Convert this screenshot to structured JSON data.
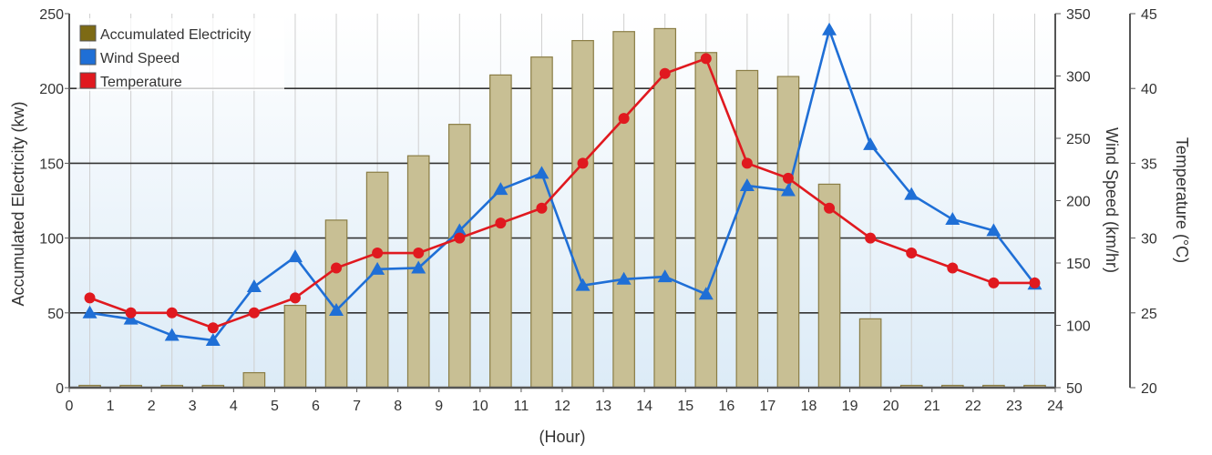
{
  "chart_data": {
    "type": "bar+line",
    "xlabel": "(Hour)",
    "x_ticks": [
      "0",
      "1",
      "2",
      "3",
      "4",
      "5",
      "6",
      "7",
      "8",
      "9",
      "10",
      "11",
      "12",
      "13",
      "14",
      "15",
      "16",
      "17",
      "18",
      "19",
      "20",
      "21",
      "22",
      "23",
      "24"
    ],
    "x_range": [
      0,
      24
    ],
    "grid": true,
    "legend_position": "top-left",
    "axes": {
      "electricity": {
        "label": "Accumulated Electricity (kw)",
        "range": [
          0,
          250
        ],
        "ticks": [
          "0",
          "50",
          "100",
          "150",
          "200",
          "250"
        ],
        "side": "left"
      },
      "wind": {
        "label": "Wind Speed (km/hr)",
        "range": [
          50,
          350
        ],
        "ticks": [
          "50",
          "100",
          "150",
          "200",
          "250",
          "300",
          "350"
        ],
        "side": "right"
      },
      "temperature": {
        "label": "Temperature (°C)",
        "range": [
          20,
          45
        ],
        "ticks": [
          "20",
          "25",
          "30",
          "35",
          "40",
          "45"
        ],
        "side": "right"
      }
    },
    "series": [
      {
        "name": "Accumulated Electricity",
        "type": "bar",
        "axis": "electricity",
        "color": "#c8bf94",
        "legend_color": "#7d6a14",
        "x": [
          0.5,
          1.5,
          2.5,
          3.5,
          4.5,
          5.5,
          6.5,
          7.5,
          8.5,
          9.5,
          10.5,
          11.5,
          12.5,
          13.5,
          14.5,
          15.5,
          16.5,
          17.5,
          18.5,
          19.5,
          20.5,
          21.5,
          22.5,
          23.5
        ],
        "values": [
          0,
          0,
          0,
          0,
          10,
          55,
          112,
          144,
          155,
          176,
          209,
          221,
          232,
          238,
          240,
          224,
          212,
          208,
          136,
          46,
          0,
          0,
          0,
          0
        ]
      },
      {
        "name": "Wind Speed",
        "type": "line",
        "marker": "triangle",
        "axis": "wind",
        "color": "#1f6fd6",
        "x": [
          0.5,
          1.5,
          2.5,
          3.5,
          4.5,
          5.5,
          6.5,
          7.5,
          8.5,
          9.5,
          10.5,
          11.5,
          12.5,
          13.5,
          14.5,
          15.5,
          16.5,
          17.5,
          18.5,
          19.5,
          20.5,
          21.5,
          22.5,
          23.5
        ],
        "values": [
          110,
          105,
          92,
          88,
          131,
          155,
          112,
          145,
          146,
          176,
          209,
          222,
          132,
          137,
          139,
          125,
          212,
          208,
          337,
          245,
          205,
          185,
          176,
          133
        ]
      },
      {
        "name": "Temperature",
        "type": "line",
        "marker": "circle",
        "axis": "temperature",
        "color": "#e0191f",
        "x": [
          0.5,
          1.5,
          2.5,
          3.5,
          4.5,
          5.5,
          6.5,
          7.5,
          8.5,
          9.5,
          10.5,
          11.5,
          12.5,
          13.5,
          14.5,
          15.5,
          16.5,
          17.5,
          18.5,
          19.5,
          20.5,
          21.5,
          22.5,
          23.5
        ],
        "values": [
          26,
          25,
          25,
          24,
          25,
          26,
          28,
          29,
          29,
          30,
          31,
          32,
          35,
          38,
          41,
          42,
          35,
          34,
          32,
          30,
          29,
          28,
          27,
          27
        ]
      }
    ]
  }
}
